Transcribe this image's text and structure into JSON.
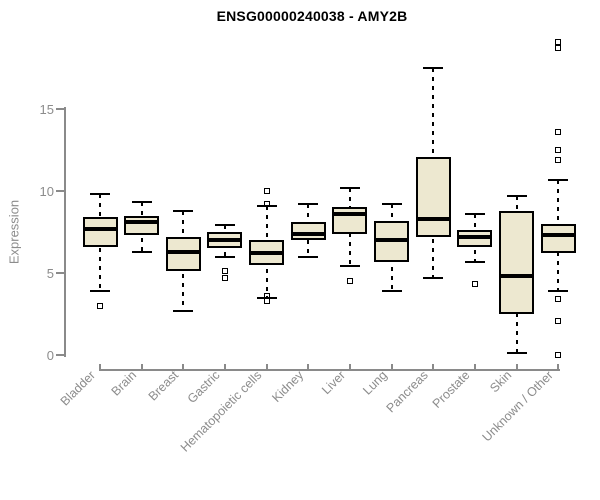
{
  "chart_data": {
    "type": "boxplot",
    "title": "ENSG00000240038 - AMY2B",
    "ylabel": "Expression",
    "xlabel": "",
    "yticks": [
      0,
      5,
      10,
      15
    ],
    "ylim": [
      0,
      19.5
    ],
    "grid": false,
    "legend": "none",
    "categories": [
      "Bladder",
      "Brain",
      "Breast",
      "Gastric",
      "Hematopoietic cells",
      "Kidney",
      "Liver",
      "Lung",
      "Pancreas",
      "Prostate",
      "Skin",
      "Unknown / Other"
    ],
    "series": [
      {
        "name": "Bladder",
        "whisker_low": 3.9,
        "q1": 6.6,
        "median": 7.7,
        "q3": 8.4,
        "whisker_high": 9.8,
        "outliers": [
          3.0
        ]
      },
      {
        "name": "Brain",
        "whisker_low": 6.3,
        "q1": 7.3,
        "median": 8.1,
        "q3": 8.5,
        "whisker_high": 9.3,
        "outliers": []
      },
      {
        "name": "Breast",
        "whisker_low": 2.7,
        "q1": 5.1,
        "median": 6.3,
        "q3": 7.2,
        "whisker_high": 8.8,
        "outliers": []
      },
      {
        "name": "Gastric",
        "whisker_low": 6.0,
        "q1": 6.5,
        "median": 7.0,
        "q3": 7.5,
        "whisker_high": 7.9,
        "outliers": [
          5.1,
          4.7
        ]
      },
      {
        "name": "Hematopoietic cells",
        "whisker_low": 3.5,
        "q1": 5.5,
        "median": 6.2,
        "q3": 7.0,
        "whisker_high": 9.1,
        "outliers": [
          10.0,
          9.2,
          3.6,
          3.3
        ]
      },
      {
        "name": "Kidney",
        "whisker_low": 6.0,
        "q1": 7.0,
        "median": 7.4,
        "q3": 8.1,
        "whisker_high": 9.2,
        "outliers": []
      },
      {
        "name": "Liver",
        "whisker_low": 5.4,
        "q1": 7.4,
        "median": 8.6,
        "q3": 9.0,
        "whisker_high": 10.2,
        "outliers": [
          4.5
        ]
      },
      {
        "name": "Lung",
        "whisker_low": 3.9,
        "q1": 5.7,
        "median": 7.0,
        "q3": 8.2,
        "whisker_high": 9.2,
        "outliers": []
      },
      {
        "name": "Pancreas",
        "whisker_low": 4.7,
        "q1": 7.2,
        "median": 8.3,
        "q3": 12.1,
        "whisker_high": 17.5,
        "outliers": []
      },
      {
        "name": "Prostate",
        "whisker_low": 5.7,
        "q1": 6.6,
        "median": 7.2,
        "q3": 7.6,
        "whisker_high": 8.6,
        "outliers": [
          4.3
        ]
      },
      {
        "name": "Skin",
        "whisker_low": 0.1,
        "q1": 2.5,
        "median": 4.8,
        "q3": 8.8,
        "whisker_high": 9.7,
        "outliers": []
      },
      {
        "name": "Unknown / Other",
        "whisker_low": 3.9,
        "q1": 6.2,
        "median": 7.3,
        "q3": 8.0,
        "whisker_high": 10.7,
        "outliers": [
          19.1,
          18.7,
          13.6,
          12.5,
          11.9,
          3.4,
          2.1,
          0.0
        ]
      }
    ],
    "style": {
      "box_fill": "#EDE8D0",
      "box_border": "#000000",
      "median_color": "#000000",
      "whisker_color": "#000000",
      "axis_color": "#8a8a8a",
      "label_color": "#8c8c8c",
      "title_color": "#000000",
      "background": "#ffffff"
    }
  }
}
